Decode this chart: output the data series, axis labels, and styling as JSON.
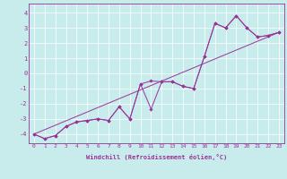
{
  "title": "",
  "xlabel": "Windchill (Refroidissement éolien,°C)",
  "bg_color": "#c8ecec",
  "line_color": "#993399",
  "grid_color": "#ffffff",
  "spine_color": "#993399",
  "xlim": [
    -0.5,
    23.5
  ],
  "ylim": [
    -4.6,
    4.6
  ],
  "xticks": [
    0,
    1,
    2,
    3,
    4,
    5,
    6,
    7,
    8,
    9,
    10,
    11,
    12,
    13,
    14,
    15,
    16,
    17,
    18,
    19,
    20,
    21,
    22,
    23
  ],
  "yticks": [
    -4,
    -3,
    -2,
    -1,
    0,
    1,
    2,
    3,
    4
  ],
  "series1_x": [
    0,
    1,
    2,
    3,
    4,
    5,
    6,
    7,
    8,
    9,
    10,
    11,
    12,
    13,
    14,
    15,
    16,
    17,
    18,
    19,
    20,
    21,
    22,
    23
  ],
  "series1_y": [
    -4.0,
    -4.3,
    -4.1,
    -3.5,
    -3.2,
    -3.1,
    -3.0,
    -3.1,
    -2.2,
    -3.0,
    -0.7,
    -2.35,
    -0.55,
    -0.55,
    -0.85,
    -1.0,
    1.1,
    3.3,
    3.0,
    3.8,
    3.0,
    2.4,
    2.5,
    2.7
  ],
  "series2_x": [
    0,
    1,
    2,
    3,
    4,
    5,
    6,
    7,
    8,
    9,
    10,
    11,
    12,
    13,
    14,
    15,
    16,
    17,
    18,
    19,
    20,
    21,
    22,
    23
  ],
  "series2_y": [
    -4.0,
    -4.3,
    -4.1,
    -3.5,
    -3.2,
    -3.1,
    -3.0,
    -3.1,
    -2.2,
    -3.0,
    -0.7,
    -0.5,
    -0.55,
    -0.55,
    -0.85,
    -1.0,
    1.1,
    3.3,
    3.0,
    3.8,
    3.0,
    2.4,
    2.5,
    2.7
  ],
  "series3_x": [
    0,
    23
  ],
  "series3_y": [
    -4.0,
    2.7
  ],
  "marker": "D",
  "markersize": 1.8,
  "linewidth": 0.7,
  "xlabel_fontsize": 5.0,
  "tick_fontsize": 4.5
}
